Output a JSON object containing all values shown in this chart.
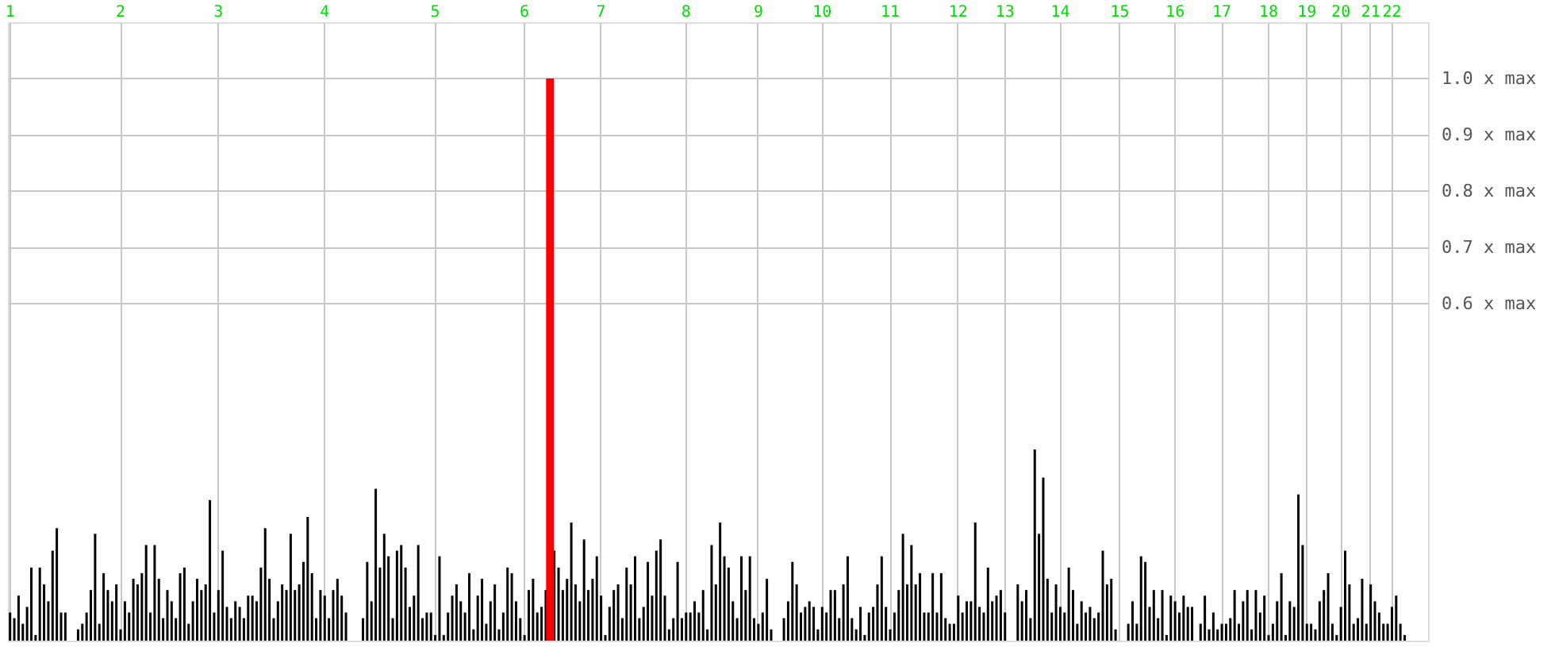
{
  "chart_data": {
    "type": "bar",
    "categories": [
      "1",
      null,
      null,
      null,
      null,
      null,
      null,
      null,
      null,
      null,
      null,
      null,
      null,
      null,
      null,
      null,
      null,
      null,
      null,
      null,
      null,
      null,
      null,
      null,
      null,
      null,
      "2",
      null,
      null,
      null,
      null,
      null,
      null,
      null,
      null,
      null,
      null,
      null,
      null,
      null,
      null,
      null,
      null,
      null,
      null,
      null,
      null,
      null,
      null,
      "3",
      null,
      null,
      null,
      null,
      null,
      null,
      null,
      null,
      null,
      null,
      null,
      null,
      null,
      null,
      null,
      null,
      null,
      null,
      null,
      null,
      null,
      null,
      null,
      null,
      "4",
      null,
      null,
      null,
      null,
      null,
      null,
      null,
      null,
      null,
      null,
      null,
      null,
      null,
      null,
      null,
      null,
      null,
      null,
      null,
      null,
      null,
      null,
      null,
      null,
      null,
      "5",
      null,
      null,
      null,
      null,
      null,
      null,
      null,
      null,
      null,
      null,
      null,
      null,
      null,
      null,
      null,
      null,
      null,
      null,
      null,
      null,
      "6",
      null,
      null,
      null,
      null,
      null,
      null,
      null,
      null,
      null,
      null,
      null,
      null,
      null,
      null,
      null,
      null,
      null,
      "7",
      null,
      null,
      null,
      null,
      null,
      null,
      null,
      null,
      null,
      null,
      null,
      null,
      null,
      null,
      null,
      null,
      null,
      null,
      null,
      "8",
      null,
      null,
      null,
      null,
      null,
      null,
      null,
      null,
      null,
      null,
      null,
      null,
      null,
      null,
      null,
      null,
      "9",
      null,
      null,
      null,
      null,
      null,
      null,
      null,
      null,
      null,
      null,
      null,
      null,
      null,
      null,
      "10",
      null,
      null,
      null,
      null,
      null,
      null,
      null,
      null,
      null,
      null,
      null,
      null,
      null,
      null,
      null,
      "11",
      null,
      null,
      null,
      null,
      null,
      null,
      null,
      null,
      null,
      null,
      null,
      null,
      null,
      null,
      null,
      "12",
      null,
      null,
      null,
      null,
      null,
      null,
      null,
      null,
      null,
      null,
      "13",
      null,
      null,
      null,
      null,
      null,
      null,
      null,
      null,
      null,
      null,
      null,
      null,
      "14",
      null,
      null,
      null,
      null,
      null,
      null,
      null,
      null,
      null,
      null,
      null,
      null,
      null,
      "15",
      null,
      null,
      null,
      null,
      null,
      null,
      null,
      null,
      null,
      null,
      null,
      null,
      "16",
      null,
      null,
      null,
      null,
      null,
      null,
      null,
      null,
      null,
      null,
      "17",
      null,
      null,
      null,
      null,
      null,
      null,
      null,
      null,
      null,
      null,
      "18",
      null,
      null,
      null,
      null,
      null,
      null,
      null,
      null,
      "19",
      null,
      null,
      null,
      null,
      null,
      null,
      null,
      "20",
      null,
      null,
      null,
      null,
      null,
      null,
      "21",
      null,
      null,
      null,
      null,
      "22",
      null,
      null,
      null,
      null,
      null,
      null,
      null,
      null
    ],
    "ylim": [
      0,
      1.1
    ],
    "yticks": [
      {
        "value": 0.6,
        "label": "0.6 x max"
      },
      {
        "value": 0.7,
        "label": "0.7 x max"
      },
      {
        "value": 0.8,
        "label": "0.8 x max"
      },
      {
        "value": 0.9,
        "label": "0.9 x max"
      },
      {
        "value": 1.0,
        "label": "1.0 x max"
      }
    ],
    "grid": true,
    "series": [
      {
        "color": "#000000",
        "values": [
          0.05,
          0.04,
          0.08,
          0.03,
          0.06,
          0.13,
          0.01,
          0.13,
          0.1,
          0.07,
          0.16,
          0.2,
          0.05,
          0.05,
          null,
          null,
          0.02,
          0.03,
          0.05,
          0.09,
          0.19,
          0.03,
          0.12,
          0.09,
          0.07,
          0.1,
          0.02,
          0.07,
          0.05,
          0.11,
          0.1,
          0.12,
          0.17,
          0.05,
          0.17,
          0.11,
          0.04,
          0.09,
          0.07,
          0.04,
          0.12,
          0.13,
          0.03,
          0.07,
          0.11,
          0.09,
          0.1,
          0.25,
          0.05,
          0.09,
          0.16,
          0.06,
          0.04,
          0.07,
          0.06,
          0.04,
          0.08,
          0.08,
          0.07,
          0.13,
          0.2,
          0.11,
          0.04,
          0.07,
          0.1,
          0.09,
          0.19,
          0.09,
          0.1,
          0.14,
          0.22,
          0.12,
          0.04,
          0.09,
          0.08,
          0.04,
          0.09,
          0.11,
          0.08,
          0.05,
          null,
          null,
          null,
          0.04,
          0.14,
          0.07,
          0.27,
          0.13,
          0.19,
          0.15,
          0.04,
          0.16,
          0.17,
          0.13,
          0.06,
          0.08,
          0.17,
          0.04,
          0.05,
          0.05,
          0.01,
          0.15,
          0.01,
          0.05,
          0.08,
          0.1,
          0.07,
          0.05,
          0.12,
          0.02,
          0.08,
          0.11,
          0.03,
          0.07,
          0.1,
          0.02,
          0.05,
          0.13,
          0.12,
          0.07,
          0.04,
          0.01,
          0.09,
          0.11,
          0.05,
          0.06,
          0.09,
          null,
          0.16,
          0.13,
          0.09,
          0.11,
          0.21,
          0.1,
          0.07,
          0.18,
          0.09,
          0.11,
          0.15,
          0.08,
          0.01,
          0.06,
          0.09,
          0.1,
          0.04,
          0.13,
          0.1,
          0.15,
          0.04,
          0.06,
          0.14,
          0.08,
          0.16,
          0.18,
          0.08,
          0.02,
          0.04,
          0.14,
          0.04,
          0.05,
          0.05,
          0.07,
          0.05,
          0.09,
          0.02,
          0.17,
          0.1,
          0.21,
          0.15,
          0.13,
          0.07,
          0.04,
          0.15,
          0.09,
          0.15,
          0.04,
          0.03,
          0.05,
          0.11,
          0.02,
          null,
          null,
          0.04,
          0.07,
          0.14,
          0.1,
          0.05,
          0.06,
          0.07,
          0.06,
          0.02,
          0.06,
          0.05,
          0.09,
          0.09,
          0.04,
          0.1,
          0.15,
          0.04,
          0.02,
          0.06,
          0.01,
          0.05,
          0.06,
          0.1,
          0.15,
          0.06,
          0.02,
          0.05,
          0.09,
          0.19,
          0.1,
          0.17,
          0.1,
          0.12,
          0.05,
          0.05,
          0.12,
          0.05,
          0.12,
          0.04,
          0.03,
          0.03,
          0.08,
          0.05,
          0.07,
          0.07,
          0.21,
          0.06,
          0.05,
          0.13,
          0.07,
          0.08,
          0.09,
          0.05,
          null,
          null,
          0.1,
          0.07,
          0.09,
          0.04,
          0.34,
          0.19,
          0.29,
          0.11,
          0.05,
          0.1,
          0.06,
          0.05,
          0.13,
          0.09,
          0.03,
          0.07,
          0.05,
          0.06,
          0.04,
          0.05,
          0.16,
          0.1,
          0.11,
          0.02,
          null,
          null,
          0.03,
          0.07,
          0.03,
          0.15,
          0.14,
          0.06,
          0.09,
          0.04,
          0.09,
          0.01,
          0.08,
          0.07,
          0.05,
          0.08,
          0.06,
          0.06,
          null,
          0.03,
          0.08,
          0.02,
          0.05,
          0.02,
          0.03,
          0.03,
          0.04,
          0.09,
          0.03,
          0.07,
          0.09,
          0.02,
          0.09,
          0.05,
          0.08,
          0.01,
          0.03,
          0.07,
          0.12,
          0.01,
          0.07,
          0.06,
          0.26,
          0.17,
          0.03,
          0.03,
          0.02,
          0.07,
          0.09,
          0.12,
          0.03,
          0.01,
          0.06,
          0.16,
          0.1,
          0.03,
          0.04,
          0.11,
          0.03,
          0.1,
          0.07,
          0.05,
          0.03,
          0.03,
          0.06,
          0.08,
          0.03,
          0.01,
          null,
          null,
          null,
          null,
          null
        ]
      },
      {
        "color": "#ff0000",
        "values": [
          null,
          null,
          null,
          null,
          null,
          null,
          null,
          null,
          null,
          null,
          null,
          null,
          null,
          null,
          null,
          null,
          null,
          null,
          null,
          null,
          null,
          null,
          null,
          null,
          null,
          null,
          null,
          null,
          null,
          null,
          null,
          null,
          null,
          null,
          null,
          null,
          null,
          null,
          null,
          null,
          null,
          null,
          null,
          null,
          null,
          null,
          null,
          null,
          null,
          null,
          null,
          null,
          null,
          null,
          null,
          null,
          null,
          null,
          null,
          null,
          null,
          null,
          null,
          null,
          null,
          null,
          null,
          null,
          null,
          null,
          null,
          null,
          null,
          null,
          null,
          null,
          null,
          null,
          null,
          null,
          null,
          null,
          null,
          null,
          null,
          null,
          null,
          null,
          null,
          null,
          null,
          null,
          null,
          null,
          null,
          null,
          null,
          null,
          null,
          null,
          null,
          null,
          null,
          null,
          null,
          null,
          null,
          null,
          null,
          null,
          null,
          null,
          null,
          null,
          null,
          null,
          null,
          null,
          null,
          null,
          null,
          null,
          null,
          null,
          null,
          null,
          null,
          1.0,
          null,
          null,
          null,
          null,
          null,
          null,
          null,
          null,
          null,
          null,
          null,
          null,
          null,
          null,
          null,
          null,
          null,
          null,
          null,
          null,
          null,
          null,
          null,
          null,
          null,
          null,
          null,
          null,
          null,
          null,
          null,
          null,
          null,
          null,
          null,
          null,
          null,
          null,
          null,
          null,
          null,
          null,
          null,
          null,
          null,
          null,
          null,
          null,
          null,
          null,
          null,
          null,
          null,
          null,
          null,
          null,
          null,
          null,
          null,
          null,
          null,
          null,
          null,
          null,
          null,
          null,
          null,
          null,
          null,
          null,
          null,
          null,
          null,
          null,
          null,
          null,
          null,
          null,
          null,
          null,
          null,
          null,
          null,
          null,
          null,
          null,
          null,
          null,
          null,
          null,
          null,
          null,
          null,
          null,
          null,
          null,
          null,
          null,
          null,
          null,
          null,
          null,
          null,
          null,
          null,
          null,
          null,
          null,
          null,
          null,
          null,
          null,
          null,
          null,
          null,
          null,
          null,
          null,
          null,
          null,
          null,
          null,
          null,
          null,
          null,
          null,
          null,
          null,
          null,
          null,
          null,
          null,
          null,
          null,
          null,
          null,
          null,
          null,
          null,
          null,
          null,
          null,
          null,
          null,
          null,
          null,
          null,
          null,
          null,
          null,
          null,
          null,
          null,
          null,
          null,
          null,
          null,
          null,
          null,
          null,
          null,
          null,
          null,
          null,
          null,
          null,
          null,
          null,
          null,
          null,
          null,
          null,
          null,
          null,
          null,
          null,
          null,
          null,
          null,
          null,
          null,
          null,
          null,
          null,
          null,
          null,
          null,
          null,
          null,
          null,
          null,
          null,
          null,
          null,
          null,
          null,
          null,
          null,
          null,
          null,
          null,
          null,
          null,
          null,
          null,
          null
        ]
      }
    ]
  }
}
